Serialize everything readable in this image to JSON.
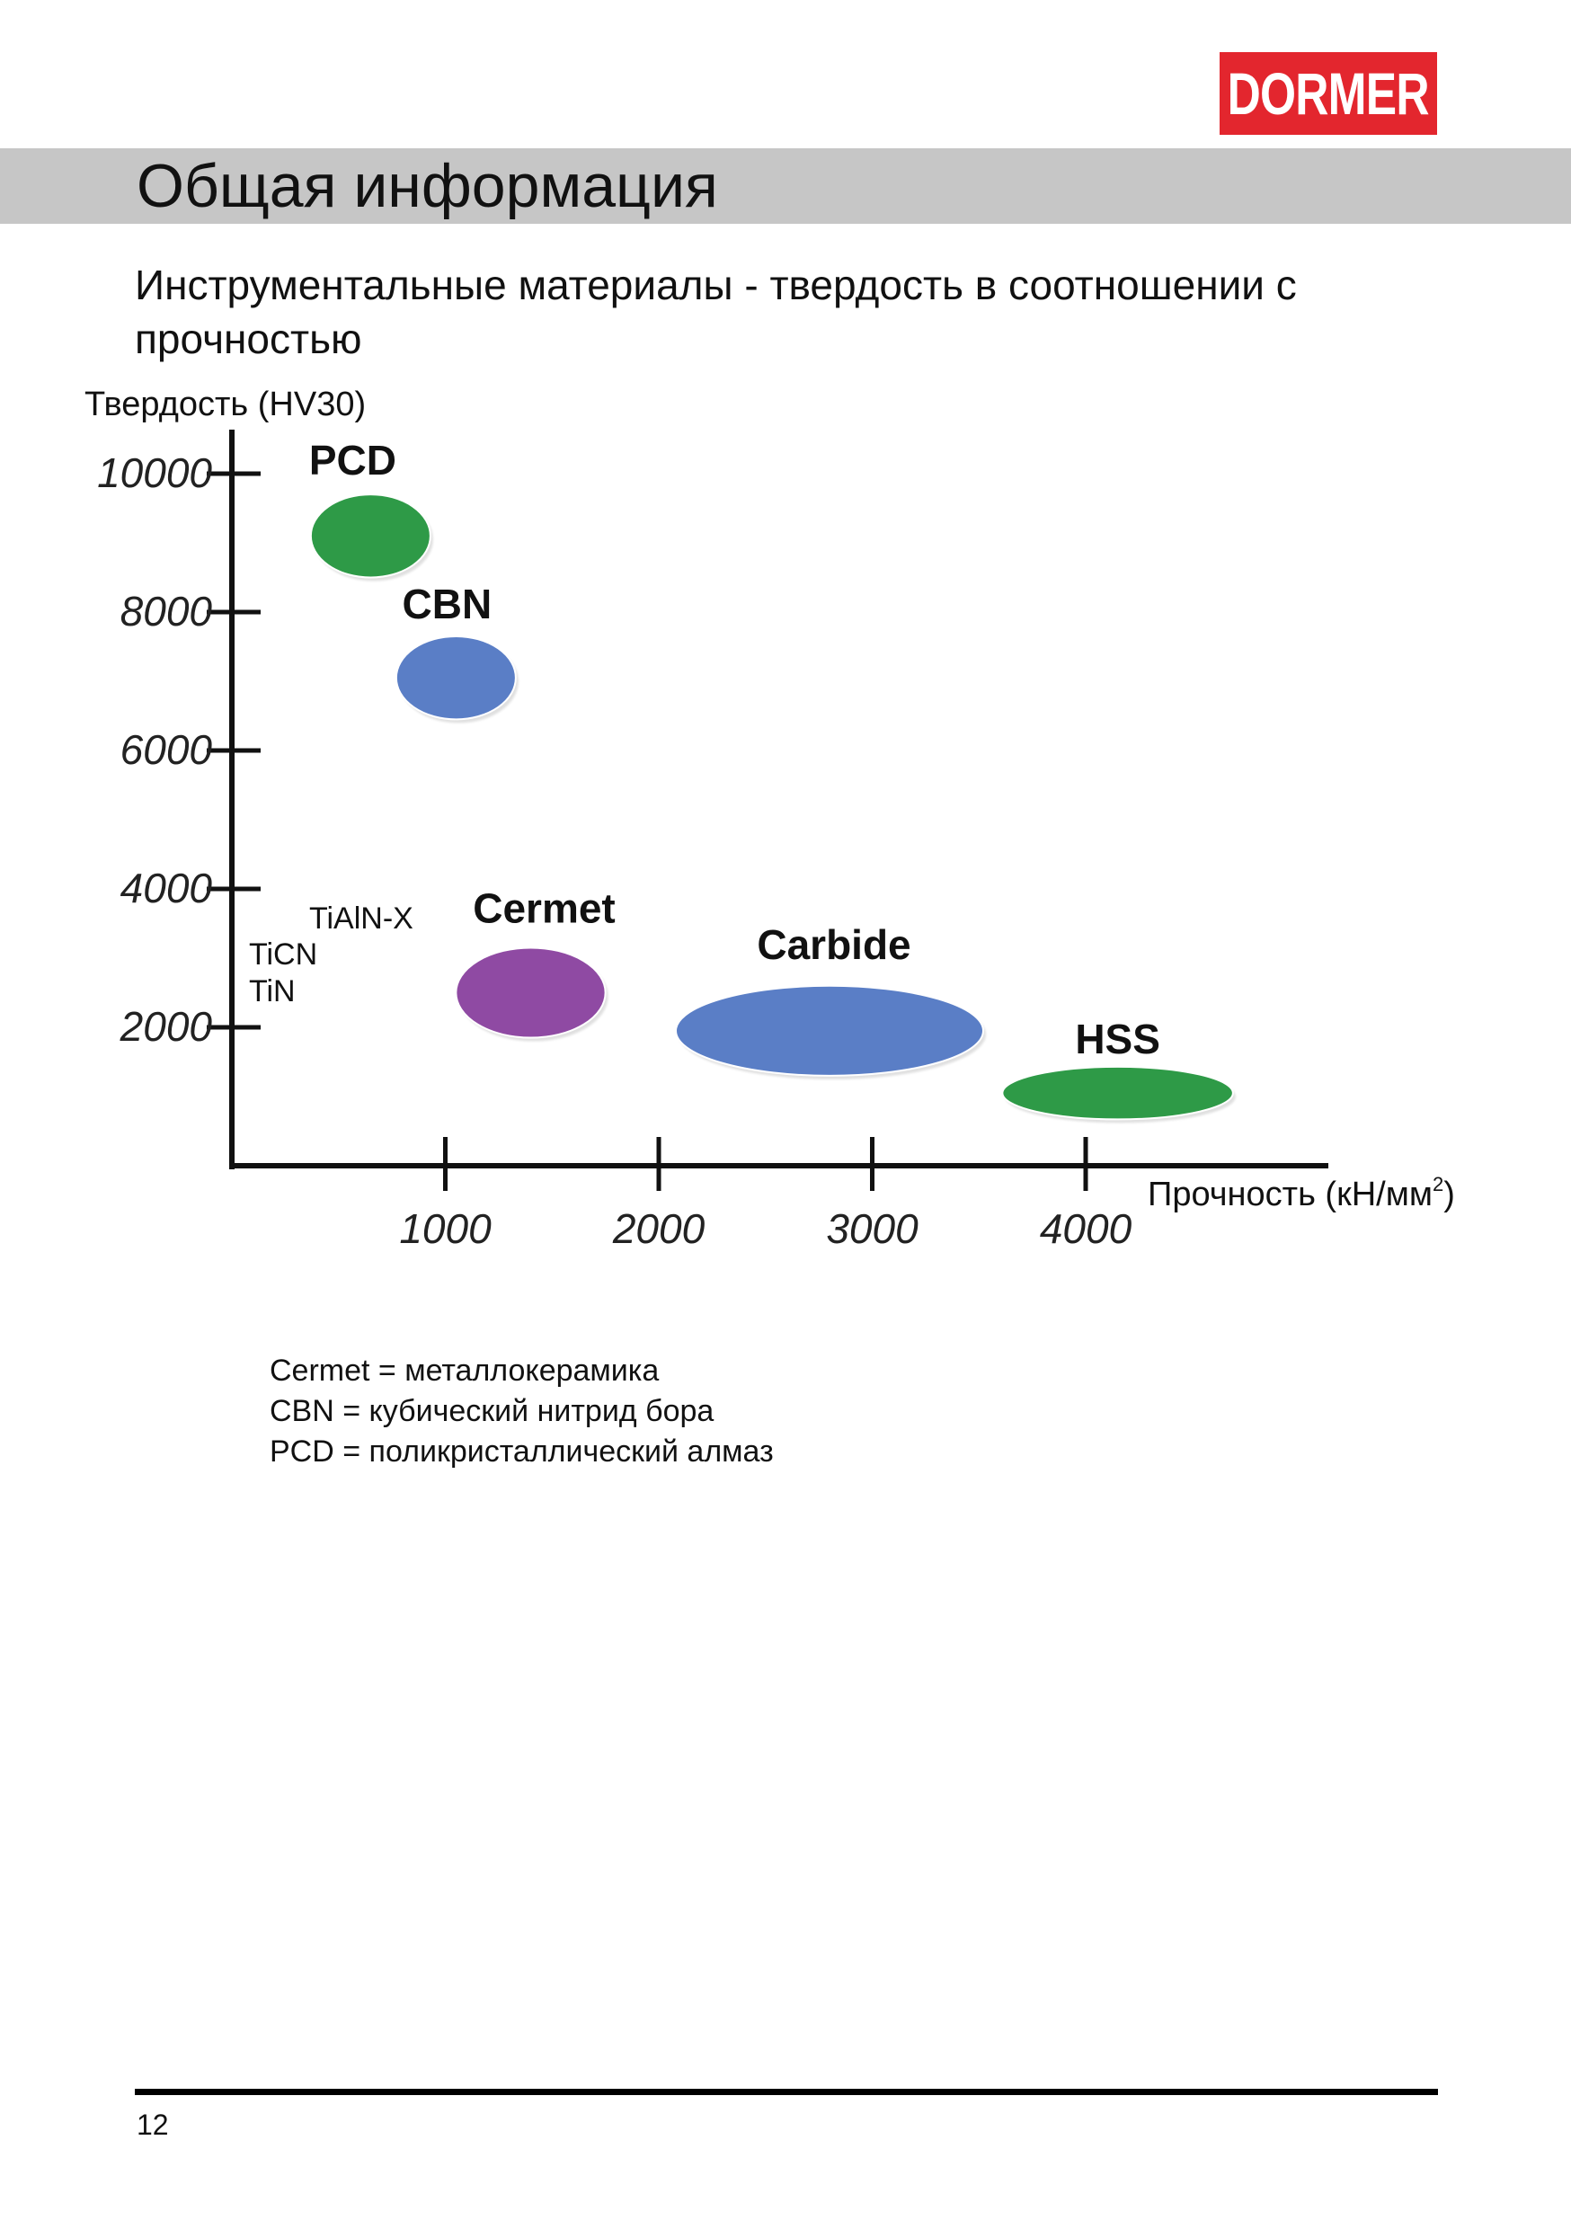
{
  "brand": {
    "logo_text": "DORMER",
    "color": "#e3262e"
  },
  "header": {
    "title": "Общая информация"
  },
  "subtitle": "Инструментальные материалы - твердость в соотношении с прочностью",
  "chart_data": {
    "type": "scatter",
    "ylabel": "Твердость (HV30)",
    "xlabel_text": "Прочность (кН/мм",
    "xlabel_sup": "2",
    "xlabel_close": ")",
    "x_ticks": [
      1000,
      2000,
      3000,
      4000
    ],
    "y_ticks": [
      2000,
      4000,
      6000,
      8000,
      10000
    ],
    "xlim": [
      0,
      4700
    ],
    "ylim": [
      0,
      10400
    ],
    "materials": [
      {
        "name": "PCD",
        "x": 650,
        "y": 9100,
        "x_spread": 280,
        "y_spread": 600,
        "color": "#2e9a47"
      },
      {
        "name": "CBN",
        "x": 1050,
        "y": 7050,
        "x_spread": 280,
        "y_spread": 600,
        "color": "#5a7ec6"
      },
      {
        "name": "Cermet",
        "x": 1400,
        "y": 2500,
        "x_spread": 350,
        "y_spread": 650,
        "color": "#8f4aa3"
      },
      {
        "name": "Carbide",
        "x": 2800,
        "y": 1950,
        "x_spread": 720,
        "y_spread": 650,
        "color": "#5a7ec6"
      },
      {
        "name": "HSS",
        "x": 4150,
        "y": 1050,
        "x_spread": 540,
        "y_spread": 380,
        "color": "#2e9a47"
      }
    ],
    "coatings": [
      "TiAlN-X",
      "TiCN",
      "TiN"
    ]
  },
  "notes": [
    "Cermet = металлокерамика",
    "CBN = кубический нитрид бора",
    "PCD = поликристаллический алмаз"
  ],
  "page_number": "12"
}
